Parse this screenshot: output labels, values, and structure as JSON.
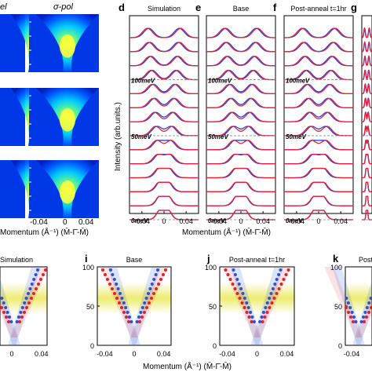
{
  "chart_data": [
    {
      "type": "heatmap",
      "panel": "spectra maps (cropped)",
      "columns": [
        "el",
        "σ-pol"
      ],
      "rows": 3,
      "x_ticks": [
        "-0.04",
        "0",
        "0.04"
      ],
      "x_axis_label": "Momentum (Å⁻¹) (M̄-Γ̄-M̄)",
      "colormap": [
        "#000080",
        "#0050ff",
        "#00d0ff",
        "#60ff90",
        "#ffff00",
        "#ff9000"
      ]
    },
    {
      "type": "line",
      "panels": [
        {
          "letter": "d",
          "title": "Simulation"
        },
        {
          "letter": "e",
          "title": "Base"
        },
        {
          "letter": "f",
          "title": "Post-anneal t=1hr"
        },
        {
          "letter": "g",
          "title": ""
        }
      ],
      "ylabel": "Intensity (arb.units.)",
      "xlabel": "Momentum (Å⁻¹) (M̄-Γ̄-M̄)",
      "x_ticks": [
        "-0.04",
        "0",
        "0.04"
      ],
      "energy_labels": [
        "100meV",
        "50meV",
        "0meV"
      ],
      "n_curves": 14,
      "series": [
        {
          "color": "#e8203a"
        },
        {
          "color": "#2048d8"
        }
      ]
    },
    {
      "type": "scatter",
      "panels": [
        {
          "letter": "",
          "title": "Simulation"
        },
        {
          "letter": "i",
          "title": "Base"
        },
        {
          "letter": "j",
          "title": "Post-anneal t=1hr"
        },
        {
          "letter": "k",
          "title": "Post"
        }
      ],
      "y_ticks": [
        "100",
        "50",
        "0"
      ],
      "x_ticks": [
        "-0.04",
        "0",
        "0.04"
      ],
      "xlabel": "Momentum (Å⁻¹) (M̄-Γ̄-M̄)",
      "band": {
        "ylim": [
          0,
          100
        ],
        "highlight_center": 50,
        "highlight_color": "#e8e640"
      },
      "series": [
        {
          "color": "#e02030"
        },
        {
          "color": "#3050d0"
        }
      ]
    }
  ]
}
